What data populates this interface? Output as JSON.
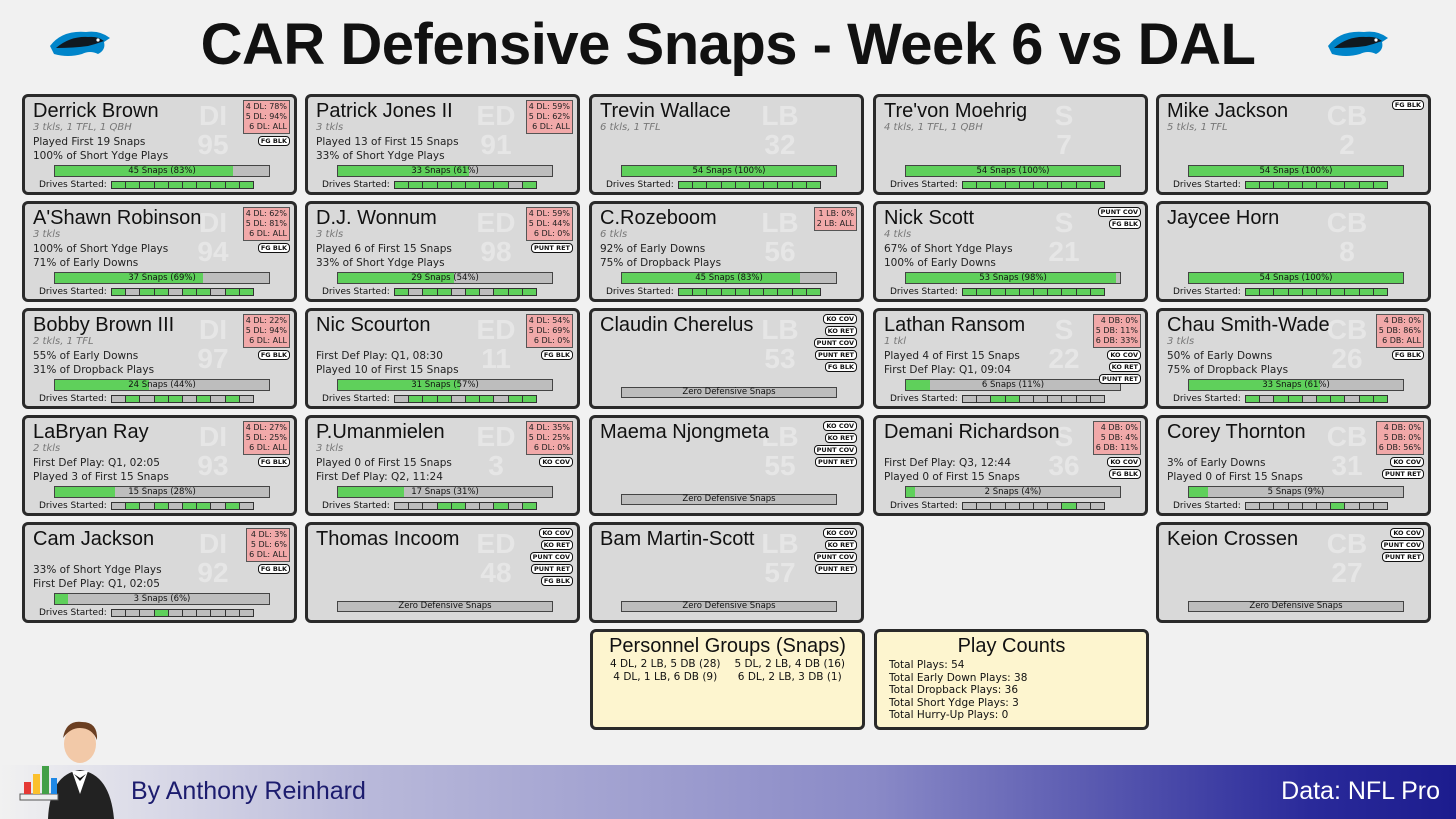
{
  "title": "CAR Defensive Snaps - Week 6 vs DAL",
  "footer": {
    "byline": "By Anthony Reinhard",
    "source": "Data: NFL Pro"
  },
  "colors": {
    "snap_fill": "#5fd05b",
    "role_box": "#f1a9a9",
    "card_bg": "#d9d9d9",
    "summary_bg": "#fdf5cf"
  },
  "players": [
    {
      "col": 0,
      "row": 0,
      "name": "Derrick Brown",
      "pos": "DI",
      "num": "95",
      "stats": "3 tkls, 1 TFL, 1 QBH",
      "line1": "Played First 19 Snaps",
      "line2": "100% of Short Ydge Plays",
      "snaps": "45 Snaps (83%)",
      "pct": 83,
      "roles": "4 DL: 78%\n5 DL: 94%\n6 DL: ALL",
      "tags": [
        "FG BLK"
      ],
      "drives": [
        1,
        1,
        1,
        1,
        1,
        1,
        1,
        1,
        1,
        1
      ]
    },
    {
      "col": 1,
      "row": 0,
      "name": "Patrick Jones II",
      "pos": "ED",
      "num": "91",
      "stats": "3 tkls",
      "line1": "Played 13 of First 15 Snaps",
      "line2": "33% of Short Ydge Plays",
      "snaps": "33 Snaps (61%)",
      "pct": 61,
      "roles": "4 DL: 59%\n5 DL: 62%\n6 DL: ALL",
      "tags": [],
      "drives": [
        1,
        1,
        1,
        1,
        1,
        1,
        1,
        1,
        0,
        1
      ]
    },
    {
      "col": 2,
      "row": 0,
      "name": "Trevin Wallace",
      "pos": "LB",
      "num": "32",
      "stats": "6 tkls, 1 TFL",
      "line1": "",
      "line2": "",
      "snaps": "54 Snaps (100%)",
      "pct": 100,
      "roles": "",
      "tags": [],
      "drives": [
        1,
        1,
        1,
        1,
        1,
        1,
        1,
        1,
        1,
        1
      ]
    },
    {
      "col": 3,
      "row": 0,
      "name": "Tre'von Moehrig",
      "pos": "S",
      "num": "7",
      "stats": "4 tkls, 1 TFL, 1 QBH",
      "line1": "",
      "line2": "",
      "snaps": "54 Snaps (100%)",
      "pct": 100,
      "roles": "",
      "tags": [],
      "drives": [
        1,
        1,
        1,
        1,
        1,
        1,
        1,
        1,
        1,
        1
      ]
    },
    {
      "col": 4,
      "row": 0,
      "name": "Mike Jackson",
      "pos": "CB",
      "num": "2",
      "stats": "5 tkls, 1 TFL",
      "line1": "",
      "line2": "",
      "snaps": "54 Snaps (100%)",
      "pct": 100,
      "roles": "",
      "tags": [
        "FG BLK"
      ],
      "drives": [
        1,
        1,
        1,
        1,
        1,
        1,
        1,
        1,
        1,
        1
      ]
    },
    {
      "col": 0,
      "row": 1,
      "name": "A'Shawn Robinson",
      "pos": "DI",
      "num": "94",
      "stats": "3 tkls",
      "line1": "100% of Short Ydge Plays",
      "line2": "71% of Early Downs",
      "snaps": "37 Snaps (69%)",
      "pct": 69,
      "roles": "4 DL: 62%\n5 DL: 81%\n6 DL: ALL",
      "tags": [
        "FG BLK"
      ],
      "drives": [
        1,
        0,
        1,
        1,
        0,
        1,
        1,
        0,
        1,
        1
      ]
    },
    {
      "col": 1,
      "row": 1,
      "name": "D.J. Wonnum",
      "pos": "ED",
      "num": "98",
      "stats": "3 tkls",
      "line1": "Played 6 of First 15 Snaps",
      "line2": "33% of Short Ydge Plays",
      "snaps": "29 Snaps (54%)",
      "pct": 54,
      "roles": "4 DL: 59%\n5 DL: 44%\n6 DL: 0%",
      "tags": [
        "PUNT RET"
      ],
      "drives": [
        1,
        0,
        1,
        1,
        0,
        1,
        0,
        1,
        1,
        1
      ]
    },
    {
      "col": 2,
      "row": 1,
      "name": "C.Rozeboom",
      "pos": "LB",
      "num": "56",
      "stats": "6 tkls",
      "line1": "92% of Early Downs",
      "line2": "75% of Dropback Plays",
      "snaps": "45 Snaps (83%)",
      "pct": 83,
      "roles": "1 LB: 0%\n2 LB: ALL",
      "tags": [],
      "drives": [
        1,
        1,
        1,
        1,
        1,
        1,
        1,
        1,
        1,
        1
      ]
    },
    {
      "col": 3,
      "row": 1,
      "name": "Nick Scott",
      "pos": "S",
      "num": "21",
      "stats": "4 tkls",
      "line1": "67% of Short Ydge Plays",
      "line2": "100% of Early Downs",
      "snaps": "53 Snaps (98%)",
      "pct": 98,
      "roles": "",
      "tags": [
        "PUNT COV",
        "FG BLK"
      ],
      "drives": [
        1,
        1,
        1,
        1,
        1,
        1,
        1,
        1,
        1,
        1
      ]
    },
    {
      "col": 4,
      "row": 1,
      "name": "Jaycee Horn",
      "pos": "CB",
      "num": "8",
      "stats": "",
      "line1": "",
      "line2": "",
      "snaps": "54 Snaps (100%)",
      "pct": 100,
      "roles": "",
      "tags": [],
      "drives": [
        1,
        1,
        1,
        1,
        1,
        1,
        1,
        1,
        1,
        1
      ]
    },
    {
      "col": 0,
      "row": 2,
      "name": "Bobby Brown III",
      "pos": "DI",
      "num": "97",
      "stats": "2 tkls, 1 TFL",
      "line1": "55% of Early Downs",
      "line2": "31% of Dropback Plays",
      "snaps": "24 Snaps (44%)",
      "pct": 44,
      "roles": "4 DL: 22%\n5 DL: 94%\n6 DL: ALL",
      "tags": [
        "FG BLK"
      ],
      "drives": [
        0,
        1,
        0,
        1,
        1,
        0,
        1,
        0,
        1,
        0
      ]
    },
    {
      "col": 1,
      "row": 2,
      "name": "Nic Scourton",
      "pos": "ED",
      "num": "11",
      "stats": "",
      "line1": "First Def Play: Q1, 08:30",
      "line2": "Played 10 of First 15 Snaps",
      "snaps": "31 Snaps (57%)",
      "pct": 57,
      "roles": "4 DL: 54%\n5 DL: 69%\n6 DL: 0%",
      "tags": [
        "FG BLK"
      ],
      "drives": [
        0,
        1,
        1,
        1,
        0,
        1,
        1,
        0,
        1,
        1
      ]
    },
    {
      "col": 2,
      "row": 2,
      "name": "Claudin Cherelus",
      "pos": "LB",
      "num": "53",
      "stats": "",
      "line1": "",
      "line2": "",
      "snaps": "Zero Defensive Snaps",
      "pct": 0,
      "roles": "",
      "tags": [
        "KO COV",
        "KO RET",
        "PUNT COV",
        "PUNT RET",
        "FG BLK"
      ],
      "drives": null
    },
    {
      "col": 3,
      "row": 2,
      "name": "Lathan Ransom",
      "pos": "S",
      "num": "22",
      "stats": "1 tkl",
      "line1": "Played 4 of First 15 Snaps",
      "line2": "First Def Play: Q1, 09:04",
      "snaps": "6 Snaps (11%)",
      "pct": 11,
      "roles": "4 DB: 0%\n5 DB: 11%\n6 DB: 33%",
      "tags": [
        "KO COV",
        "KO RET",
        "PUNT RET"
      ],
      "drives": [
        0,
        0,
        1,
        1,
        0,
        0,
        0,
        0,
        0,
        0
      ]
    },
    {
      "col": 4,
      "row": 2,
      "name": "Chau Smith-Wade",
      "pos": "CB",
      "num": "26",
      "stats": "3 tkls",
      "line1": "50% of Early Downs",
      "line2": "75% of Dropback Plays",
      "snaps": "33 Snaps (61%)",
      "pct": 61,
      "roles": "4 DB: 0%\n5 DB: 86%\n6 DB: ALL",
      "tags": [
        "FG BLK"
      ],
      "drives": [
        1,
        0,
        1,
        1,
        0,
        1,
        1,
        0,
        1,
        1
      ]
    },
    {
      "col": 0,
      "row": 3,
      "name": "LaBryan Ray",
      "pos": "DI",
      "num": "93",
      "stats": "2 tkls",
      "line1": "First Def Play: Q1, 02:05",
      "line2": "Played 3 of First 15 Snaps",
      "snaps": "15 Snaps (28%)",
      "pct": 28,
      "roles": "4 DL: 27%\n5 DL: 25%\n6 DL: ALL",
      "tags": [
        "FG BLK"
      ],
      "drives": [
        0,
        1,
        0,
        1,
        0,
        1,
        1,
        0,
        1,
        0
      ]
    },
    {
      "col": 1,
      "row": 3,
      "name": "P.Umanmielen",
      "pos": "ED",
      "num": "3",
      "stats": "3 tkls",
      "line1": "Played 0 of First 15 Snaps",
      "line2": "First Def Play: Q2, 11:24",
      "snaps": "17 Snaps (31%)",
      "pct": 31,
      "roles": "4 DL: 35%\n5 DL: 25%\n6 DL: 0%",
      "tags": [
        "KO COV"
      ],
      "drives": [
        0,
        0,
        0,
        1,
        1,
        0,
        0,
        1,
        0,
        1
      ]
    },
    {
      "col": 2,
      "row": 3,
      "name": "Maema Njongmeta",
      "pos": "LB",
      "num": "55",
      "stats": "",
      "line1": "",
      "line2": "",
      "snaps": "Zero Defensive Snaps",
      "pct": 0,
      "roles": "",
      "tags": [
        "KO COV",
        "KO RET",
        "PUNT COV",
        "PUNT RET"
      ],
      "drives": null
    },
    {
      "col": 3,
      "row": 3,
      "name": "Demani Richardson",
      "pos": "S",
      "num": "36",
      "stats": "",
      "line1": "First Def Play: Q3, 12:44",
      "line2": "Played 0 of First 15 Snaps",
      "snaps": "2 Snaps (4%)",
      "pct": 4,
      "roles": "4 DB: 0%\n5 DB: 4%\n6 DB: 11%",
      "tags": [
        "KO COV",
        "FG BLK"
      ],
      "drives": [
        0,
        0,
        0,
        0,
        0,
        0,
        0,
        1,
        0,
        0
      ]
    },
    {
      "col": 4,
      "row": 3,
      "name": "Corey Thornton",
      "pos": "CB",
      "num": "31",
      "stats": "",
      "line1": "3% of Early Downs",
      "line2": "Played 0 of First 15 Snaps",
      "snaps": "5 Snaps (9%)",
      "pct": 9,
      "roles": "4 DB: 0%\n5 DB: 0%\n6 DB: 56%",
      "tags": [
        "KO COV",
        "PUNT RET"
      ],
      "drives": [
        0,
        0,
        0,
        0,
        0,
        0,
        1,
        0,
        0,
        0
      ]
    },
    {
      "col": 0,
      "row": 4,
      "name": "Cam Jackson",
      "pos": "DI",
      "num": "92",
      "stats": "",
      "line1": "33% of Short Ydge Plays",
      "line2": "First Def Play: Q1, 02:05",
      "snaps": "3 Snaps (6%)",
      "pct": 6,
      "roles": "4 DL: 3%\n5 DL: 6%\n6 DL: ALL",
      "tags": [
        "FG BLK"
      ],
      "drives": [
        0,
        0,
        0,
        1,
        0,
        0,
        0,
        0,
        0,
        0
      ]
    },
    {
      "col": 1,
      "row": 4,
      "name": "Thomas Incoom",
      "pos": "ED",
      "num": "48",
      "stats": "",
      "line1": "",
      "line2": "",
      "snaps": "Zero Defensive Snaps",
      "pct": 0,
      "roles": "",
      "tags": [
        "KO COV",
        "KO RET",
        "PUNT COV",
        "PUNT RET",
        "FG BLK"
      ],
      "drives": null
    },
    {
      "col": 2,
      "row": 4,
      "name": "Bam Martin-Scott",
      "pos": "LB",
      "num": "57",
      "stats": "",
      "line1": "",
      "line2": "",
      "snaps": "Zero Defensive Snaps",
      "pct": 0,
      "roles": "",
      "tags": [
        "KO COV",
        "KO RET",
        "PUNT COV",
        "PUNT RET"
      ],
      "drives": null
    },
    {
      "col": 4,
      "row": 4,
      "name": "Keion Crossen",
      "pos": "CB",
      "num": "27",
      "stats": "",
      "line1": "",
      "line2": "",
      "snaps": "Zero Defensive Snaps",
      "pct": 0,
      "roles": "",
      "tags": [
        "KO COV",
        "PUNT COV",
        "PUNT RET"
      ],
      "drives": null
    }
  ],
  "drives_label": "Drives Started:",
  "personnel": {
    "title": "Personnel Groups (Snaps)",
    "items": [
      "4 DL, 2 LB, 5 DB (28)",
      "5 DL, 2 LB, 4 DB (16)",
      "4 DL, 1 LB, 6 DB (9)",
      "6 DL, 2 LB, 3 DB (1)"
    ]
  },
  "play_counts": {
    "title": "Play Counts",
    "items": [
      "Total Plays: 54",
      "Total Early Down Plays: 38",
      "Total Dropback Plays: 36",
      "Total Short Ydge Plays: 3",
      "Total Hurry-Up Plays: 0"
    ]
  }
}
